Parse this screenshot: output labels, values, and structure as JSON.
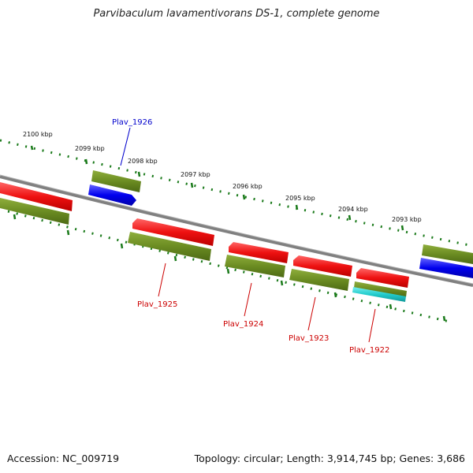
{
  "title": "Parvibaculum lavamentivorans DS-1, complete genome",
  "footer": {
    "accession": "Accession: NC_009719",
    "summary": "Topology: circular; Length: 3,914,745 bp; Genes: 3,686"
  },
  "kbp_labels": [
    "2100 kbp",
    "2099 kbp",
    "2098 kbp",
    "2097 kbp",
    "2096 kbp",
    "2095 kbp",
    "2094 kbp",
    "2093 kbp"
  ],
  "gene_labels": [
    {
      "text": "Plav_1926",
      "color": "#0000cc"
    },
    {
      "text": "Plav_1925",
      "color": "#cc0000"
    },
    {
      "text": "Plav_1924",
      "color": "#cc0000"
    },
    {
      "text": "Plav_1923",
      "color": "#cc0000"
    },
    {
      "text": "Plav_1922",
      "color": "#cc0000"
    }
  ],
  "colors": {
    "forward_cds": "#ee1111",
    "reverse_cds": "#1111ee",
    "gene": "#6b8c22",
    "rna": "#22cccc",
    "backbone": "#808080",
    "tick": "#1a7a1a"
  }
}
